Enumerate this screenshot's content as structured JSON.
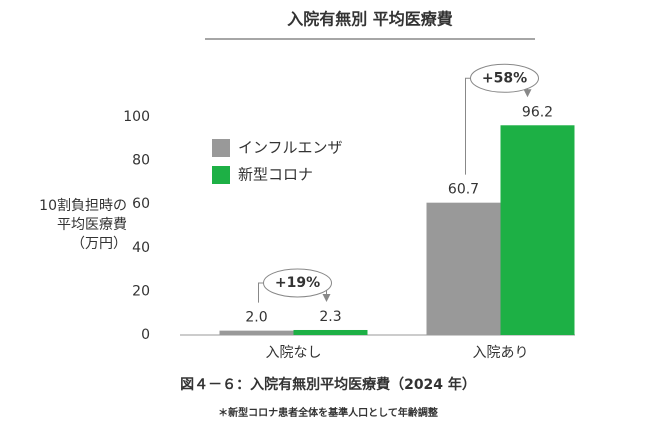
{
  "chart_data": {
    "type": "bar",
    "title": "入院有無別 平均医療費",
    "ylabel": [
      "10割負担時の",
      "平均医療費",
      "（万円）"
    ],
    "categories": [
      "入院なし",
      "入院あり"
    ],
    "series": [
      {
        "name": "インフルエンザ",
        "color": "#999999",
        "values": [
          2.0,
          60.7
        ],
        "value_labels": [
          "2.0",
          "60.7"
        ]
      },
      {
        "name": "新型コロナ",
        "color": "#1db045",
        "values": [
          2.3,
          96.2
        ]
      }
    ],
    "annotations": [
      "+19%",
      "+58%"
    ],
    "ylim": [
      0,
      100
    ],
    "yticks": [
      0,
      20,
      40,
      60,
      80,
      100
    ],
    "grid": false,
    "caption": "図４－６：入院有無別平均医療費（2024 年）",
    "note": "＊新型コロナ患者全体を基準人口として年齢調整"
  }
}
